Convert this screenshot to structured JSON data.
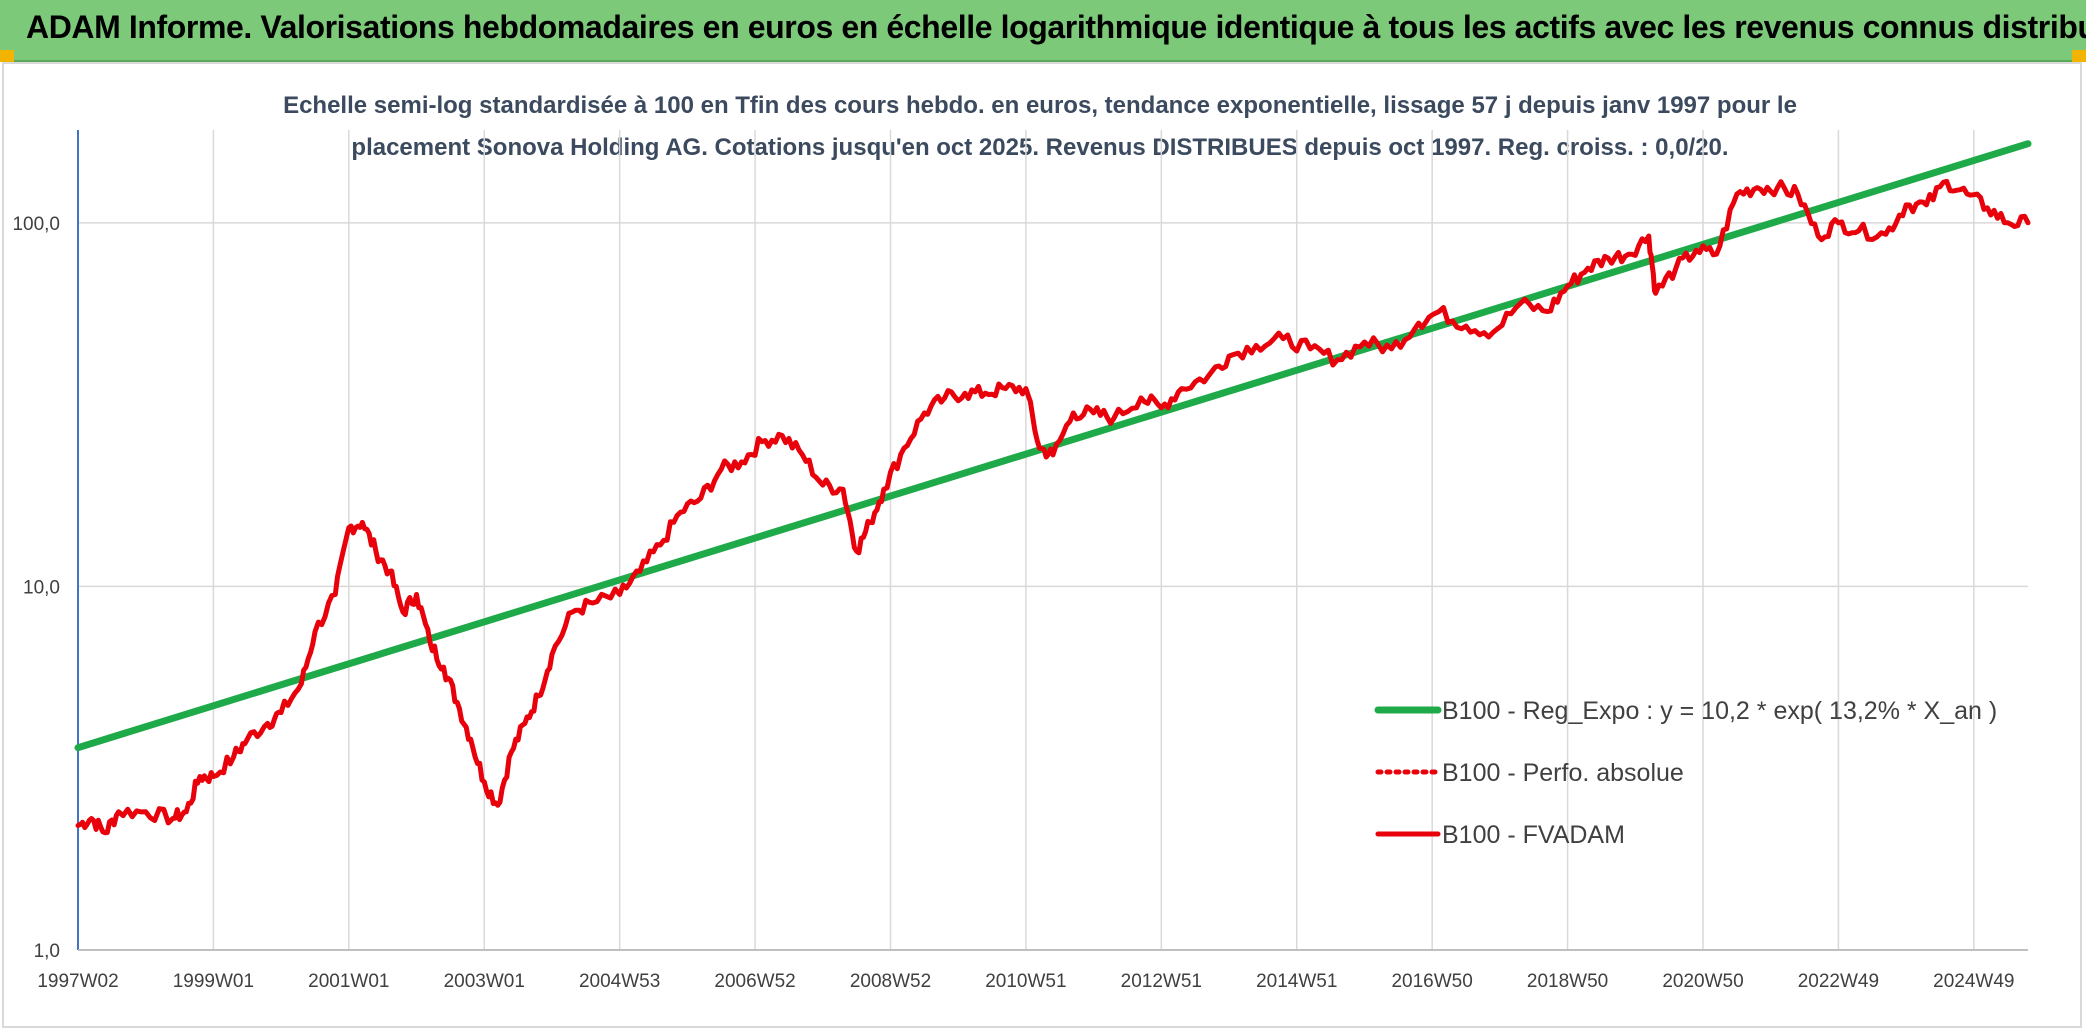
{
  "header": {
    "title": "ADAM Informe. Valorisations hebdomadaires en euros en échelle logarithmique identique à tous les actifs avec les revenus connus distribués"
  },
  "colors": {
    "banner": "#7dc97a",
    "regression": "#1faa4a",
    "fvadam": "#e8000b",
    "grid": "#d9d9d9"
  },
  "chart_data": {
    "type": "line",
    "title_line1": "Echelle semi-log standardisée à 100 en Tfin des cours hebdo. en euros, tendance exponentielle, lissage 57 j depuis janv 1997 pour le",
    "title_line2": "placement Sonova Holding AG. Cotations jusqu'en oct 2025. Revenus DISTRIBUES depuis oct 1997. Reg. croiss. : 0,0/20.",
    "yscale": "log",
    "ylim": [
      1,
      180
    ],
    "y_ticks": [
      {
        "value": 1,
        "label": "1,0"
      },
      {
        "value": 10,
        "label": "10,0"
      },
      {
        "value": 100,
        "label": "100,0"
      }
    ],
    "xlim": [
      1997.0,
      2025.8
    ],
    "x_ticks": [
      {
        "x": 1997.0,
        "label": "1997W02"
      },
      {
        "x": 1999.0,
        "label": "1999W01"
      },
      {
        "x": 2001.0,
        "label": "2001W01"
      },
      {
        "x": 2003.0,
        "label": "2003W01"
      },
      {
        "x": 2005.0,
        "label": "2004W53"
      },
      {
        "x": 2007.0,
        "label": "2006W52"
      },
      {
        "x": 2009.0,
        "label": "2008W52"
      },
      {
        "x": 2011.0,
        "label": "2010W51"
      },
      {
        "x": 2013.0,
        "label": "2012W51"
      },
      {
        "x": 2015.0,
        "label": "2014W51"
      },
      {
        "x": 2017.0,
        "label": "2016W50"
      },
      {
        "x": 2019.0,
        "label": "2018W50"
      },
      {
        "x": 2021.0,
        "label": "2020W50"
      },
      {
        "x": 2023.0,
        "label": "2022W49"
      },
      {
        "x": 2025.0,
        "label": "2024W49"
      }
    ],
    "series": [
      {
        "name": "B100 - Reg_Expo : y = 10,2 * exp( 13,2% *  X_an )",
        "style": "solid-green",
        "x": [
          1997.0,
          2025.8
        ],
        "y": [
          3.6,
          165
        ]
      },
      {
        "name": "B100 - Perfo. absolue",
        "style": "dotted-red",
        "x": [],
        "y": []
      },
      {
        "name": "B100 - FVADAM",
        "style": "solid-red",
        "x": [
          1997.0,
          1997.2,
          1997.4,
          1997.6,
          1998.0,
          1998.4,
          1998.6,
          1998.8,
          1999.0,
          1999.3,
          1999.5,
          1999.8,
          2000.0,
          2000.3,
          2000.5,
          2000.8,
          2001.0,
          2001.2,
          2001.4,
          2001.6,
          2001.8,
          2002.0,
          2002.2,
          2002.4,
          2002.6,
          2002.8,
          2003.0,
          2003.2,
          2003.4,
          2003.6,
          2003.8,
          2004.0,
          2004.3,
          2004.6,
          2005.0,
          2005.3,
          2005.6,
          2005.9,
          2006.2,
          2006.5,
          2006.8,
          2007.1,
          2007.4,
          2007.7,
          2008.0,
          2008.3,
          2008.5,
          2008.7,
          2008.9,
          2009.2,
          2009.5,
          2009.8,
          2010.1,
          2010.4,
          2010.7,
          2011.0,
          2011.2,
          2011.4,
          2011.7,
          2012.0,
          2012.3,
          2012.7,
          2013.0,
          2013.3,
          2013.7,
          2014.0,
          2014.4,
          2014.8,
          2015.2,
          2015.6,
          2016.0,
          2016.4,
          2016.8,
          2017.1,
          2017.5,
          2017.9,
          2018.3,
          2018.7,
          2019.0,
          2019.3,
          2019.6,
          2019.9,
          2020.2,
          2020.3,
          2020.6,
          2020.9,
          2021.2,
          2021.5,
          2021.8,
          2022.1,
          2022.4,
          2022.7,
          2023.0,
          2023.3,
          2023.7,
          2024.0,
          2024.3,
          2024.6,
          2024.9,
          2025.2,
          2025.5,
          2025.8
        ],
        "y": [
          2.2,
          2.3,
          2.1,
          2.4,
          2.4,
          2.3,
          2.4,
          3.0,
          3.0,
          3.4,
          3.8,
          4.2,
          4.5,
          5.4,
          7.5,
          9.5,
          14.5,
          15.0,
          12.5,
          11.0,
          8.5,
          9.5,
          7.0,
          6.0,
          4.8,
          3.8,
          2.9,
          2.5,
          3.5,
          4.2,
          5.0,
          6.5,
          8.5,
          9.0,
          9.5,
          11.0,
          13.0,
          16.0,
          17.5,
          21.0,
          22.0,
          25.0,
          26.0,
          23.0,
          19.0,
          18.5,
          12.5,
          15.0,
          18.5,
          24.0,
          30.0,
          33.0,
          34.0,
          34.0,
          35.0,
          35.0,
          24.0,
          23.0,
          30.0,
          30.0,
          29.0,
          33.0,
          31.0,
          35.0,
          38.0,
          43.0,
          46.0,
          48.0,
          45.0,
          42.0,
          47.0,
          45.0,
          53.0,
          57.0,
          52.0,
          50.0,
          60.0,
          57.0,
          67.0,
          75.0,
          80.0,
          82.0,
          92.0,
          64.0,
          75.0,
          84.0,
          82.0,
          120.0,
          125.0,
          125.0,
          120.0,
          92.0,
          100.0,
          95.0,
          93.0,
          112.0,
          112.0,
          130.0,
          120.0,
          110.0,
          100.0,
          100.0
        ]
      }
    ],
    "legend_position": "lower-right"
  }
}
